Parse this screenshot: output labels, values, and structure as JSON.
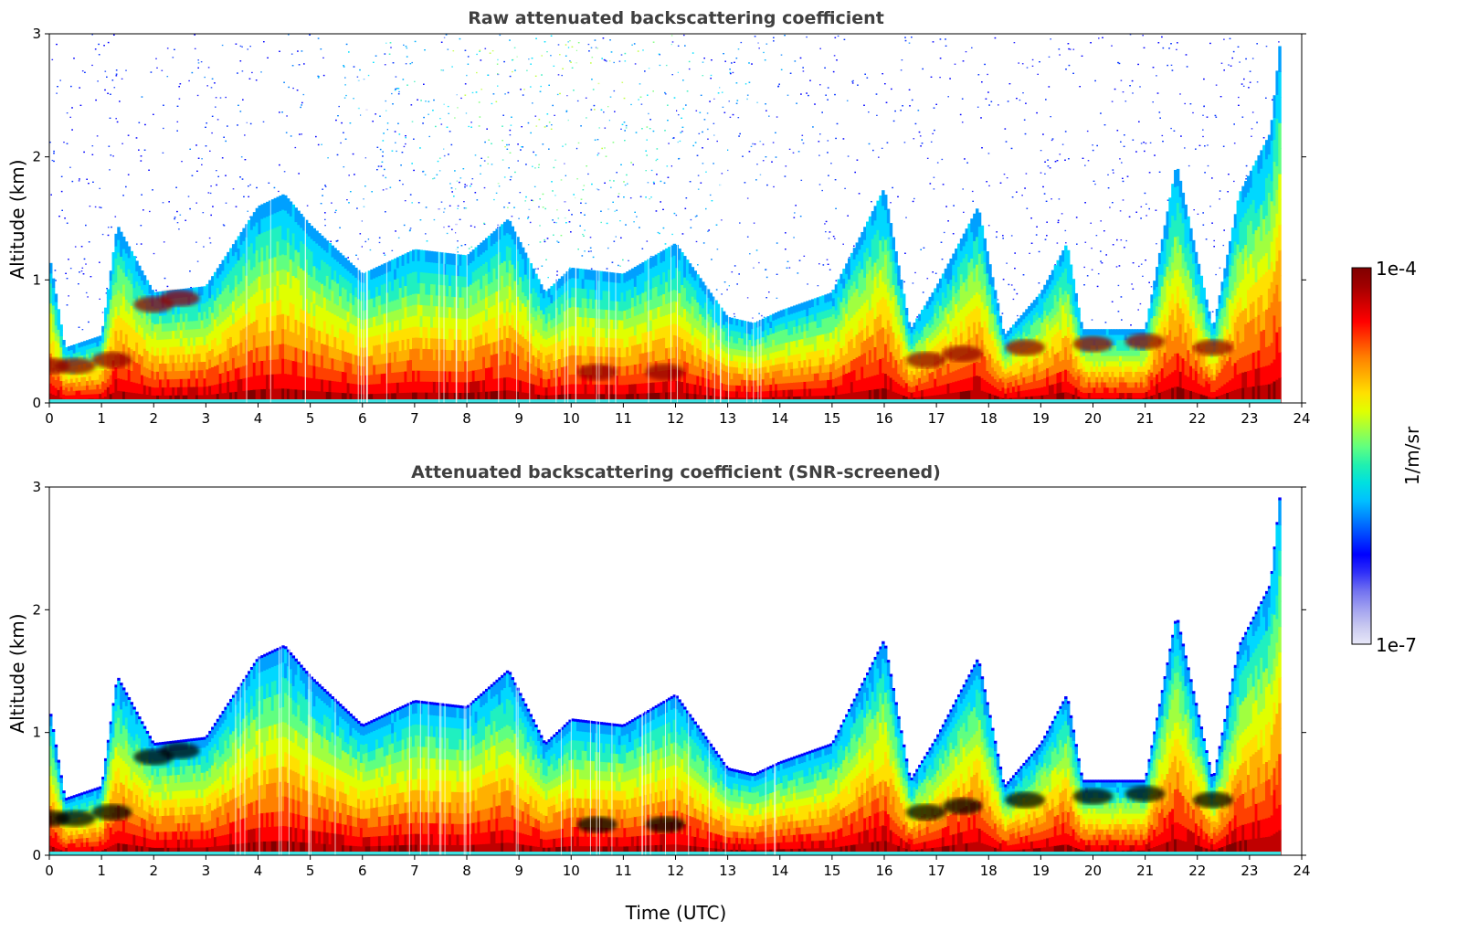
{
  "chart_data": [
    {
      "type": "heatmap",
      "title": "Raw attenuated backscattering coefficient",
      "xlabel": "",
      "ylabel": "Altitude (km)",
      "xlim": [
        0,
        24
      ],
      "ylim": [
        0,
        3
      ],
      "xticks": [
        "0",
        "1",
        "2",
        "3",
        "4",
        "5",
        "6",
        "7",
        "8",
        "9",
        "10",
        "11",
        "12",
        "13",
        "14",
        "15",
        "16",
        "17",
        "18",
        "19",
        "20",
        "21",
        "22",
        "23",
        "24"
      ],
      "yticks": [
        "0",
        "1",
        "2",
        "3"
      ],
      "data_end_hour": 23.6,
      "noise": "high",
      "boundary_layer_top_km": [
        [
          0,
          1.2
        ],
        [
          0.3,
          0.45
        ],
        [
          1,
          0.55
        ],
        [
          1.3,
          1.45
        ],
        [
          2,
          0.9
        ],
        [
          3,
          0.95
        ],
        [
          4,
          1.6
        ],
        [
          4.5,
          1.7
        ],
        [
          5,
          1.45
        ],
        [
          6,
          1.05
        ],
        [
          7,
          1.25
        ],
        [
          8,
          1.2
        ],
        [
          8.8,
          1.5
        ],
        [
          9.5,
          0.9
        ],
        [
          10,
          1.1
        ],
        [
          11,
          1.05
        ],
        [
          12,
          1.3
        ],
        [
          13,
          0.7
        ],
        [
          13.5,
          0.65
        ],
        [
          14,
          0.75
        ],
        [
          15,
          0.9
        ],
        [
          16,
          1.75
        ],
        [
          16.5,
          0.6
        ],
        [
          17,
          0.95
        ],
        [
          17.8,
          1.6
        ],
        [
          18.3,
          0.55
        ],
        [
          19,
          0.9
        ],
        [
          19.5,
          1.3
        ],
        [
          19.8,
          0.6
        ],
        [
          21,
          0.6
        ],
        [
          21.6,
          1.95
        ],
        [
          22.3,
          0.6
        ],
        [
          22.8,
          1.7
        ],
        [
          23.4,
          2.2
        ],
        [
          23.6,
          3.0
        ]
      ],
      "dense_layers_km": [
        [
          0,
          0.3
        ],
        [
          0.5,
          0.3
        ],
        [
          1.2,
          0.35
        ],
        [
          2,
          0.8
        ],
        [
          2.5,
          0.85
        ],
        [
          10.5,
          0.25
        ],
        [
          11.8,
          0.25
        ],
        [
          16.8,
          0.35
        ],
        [
          17.5,
          0.4
        ],
        [
          18.7,
          0.45
        ],
        [
          20,
          0.48
        ],
        [
          21,
          0.5
        ],
        [
          22.3,
          0.45
        ]
      ]
    },
    {
      "type": "heatmap",
      "title": "Attenuated backscattering coefficient (SNR-screened)",
      "xlabel": "Time (UTC)",
      "ylabel": "Altitude (km)",
      "xlim": [
        0,
        24
      ],
      "ylim": [
        0,
        3
      ],
      "xticks": [
        "0",
        "1",
        "2",
        "3",
        "4",
        "5",
        "6",
        "7",
        "8",
        "9",
        "10",
        "11",
        "12",
        "13",
        "14",
        "15",
        "16",
        "17",
        "18",
        "19",
        "20",
        "21",
        "22",
        "23",
        "24"
      ],
      "yticks": [
        "0",
        "1",
        "2",
        "3"
      ],
      "data_end_hour": 23.6,
      "noise": "none"
    }
  ],
  "colorbar": {
    "label": "1/m/sr",
    "max_label": "1e-4",
    "min_label": "1e-7",
    "colors": [
      "#e8e8f8",
      "#c8c8f0",
      "#a0a0f0",
      "#7070f0",
      "#3030f8",
      "#0000ff",
      "#0040ff",
      "#0080ff",
      "#00c0ff",
      "#00e0e0",
      "#20f0b0",
      "#60ff80",
      "#a0ff40",
      "#e0ff00",
      "#ffe000",
      "#ffb000",
      "#ff8000",
      "#ff4000",
      "#ff0000",
      "#d00000",
      "#a00000",
      "#800000"
    ]
  }
}
